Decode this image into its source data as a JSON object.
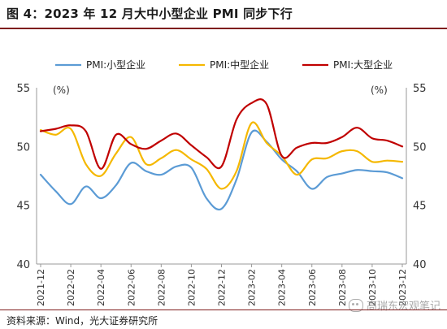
{
  "figure": {
    "title": "图 4：2023 年 12 月大中小型企业 PMI 同步下行",
    "source": "资料来源：Wind，光大证券研究所",
    "watermark": "高瑞东宏观笔记"
  },
  "chart_data": {
    "type": "line",
    "title": "",
    "ylabel_left": "(%)",
    "ylabel_right": "(%)",
    "ylim": [
      40,
      55
    ],
    "yticks": [
      40,
      45,
      50,
      55
    ],
    "x": [
      "2021-12",
      "2022-01",
      "2022-02",
      "2022-03",
      "2022-04",
      "2022-05",
      "2022-06",
      "2022-07",
      "2022-08",
      "2022-09",
      "2022-10",
      "2022-11",
      "2022-12",
      "2023-01",
      "2023-02",
      "2023-03",
      "2023-04",
      "2023-05",
      "2023-06",
      "2023-07",
      "2023-08",
      "2023-09",
      "2023-10",
      "2023-11",
      "2023-12"
    ],
    "xtick_labels": [
      "2021-12",
      "2022-02",
      "2022-04",
      "2022-06",
      "2022-08",
      "2022-10",
      "2022-12",
      "2023-02",
      "2023-04",
      "2023-06",
      "2023-08",
      "2023-10",
      "2023-12"
    ],
    "legend_position": "top",
    "grid": false,
    "series": [
      {
        "name": "PMI:小型企业",
        "color": "#5b9bd5",
        "values": [
          47.6,
          46.2,
          45.1,
          46.6,
          45.6,
          46.7,
          48.6,
          47.9,
          47.6,
          48.3,
          48.2,
          45.6,
          44.7,
          47.2,
          51.2,
          50.4,
          48.9,
          47.9,
          46.4,
          47.4,
          47.7,
          48.0,
          47.9,
          47.8,
          47.3
        ]
      },
      {
        "name": "PMI:中型企业",
        "color": "#f5b800",
        "values": [
          51.4,
          51.0,
          51.5,
          48.5,
          47.5,
          49.4,
          50.8,
          48.5,
          49.0,
          49.7,
          48.9,
          48.1,
          46.4,
          47.9,
          52.0,
          50.3,
          49.2,
          47.6,
          48.9,
          49.0,
          49.6,
          49.6,
          48.7,
          48.8,
          48.7
        ]
      },
      {
        "name": "PMI:大型企业",
        "color": "#c00000",
        "values": [
          51.3,
          51.5,
          51.8,
          51.3,
          48.1,
          51.0,
          50.2,
          49.8,
          50.5,
          51.1,
          50.1,
          49.1,
          48.3,
          52.3,
          53.7,
          53.6,
          49.2,
          49.9,
          50.3,
          50.3,
          50.8,
          51.6,
          50.7,
          50.5,
          50.0
        ]
      }
    ]
  }
}
